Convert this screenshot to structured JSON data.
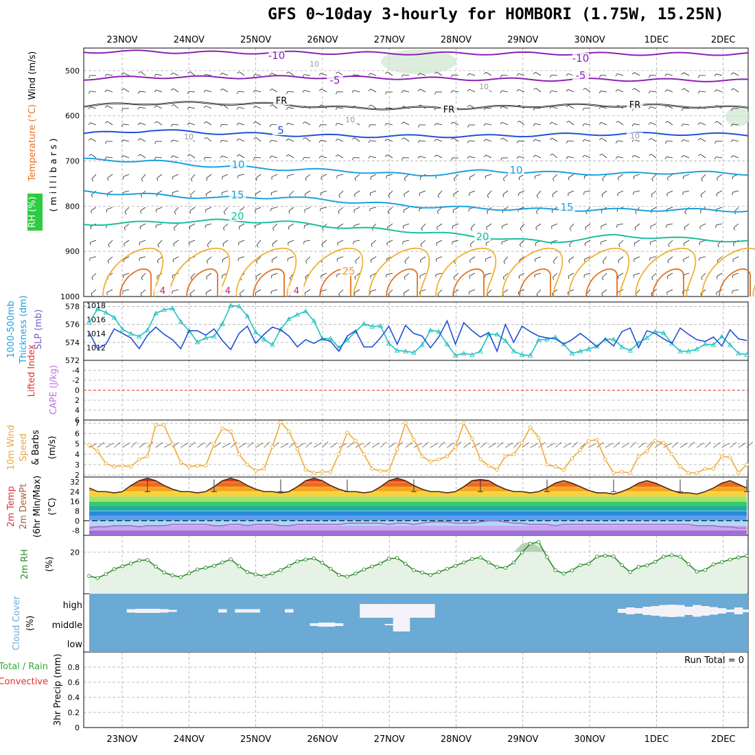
{
  "title": "GFS 0~10day 3-hourly for HOMBORI (1.75W, 15.25N)",
  "dates": [
    "23NOV",
    "24NOV",
    "25NOV",
    "26NOV",
    "27NOV",
    "28NOV",
    "29NOV",
    "30NOV",
    "1DEC",
    "2DEC"
  ],
  "colors": {
    "purple": "#8c1fb4",
    "black": "#000000",
    "blue": "#1f4fd6",
    "lightblue": "#1aa0e0",
    "teal": "#17bf9b",
    "orange": "#f0a830",
    "darkorange": "#e07020",
    "red": "#e03030",
    "rhgreen": "#2a8a2a",
    "cloud": "#6aaad4",
    "precipgreen": "#33aa33"
  },
  "chart_data": [
    {
      "panel": "upper-air",
      "type": "contour",
      "ylabel_parts": [
        "RH (%)",
        "Temperature (°C)",
        "Wind (m/s)"
      ],
      "yunit_label": "( m i l l i b a r s )",
      "ytick_labels": [
        "500",
        "600",
        "700",
        "800",
        "900",
        "1000"
      ],
      "ylim": [
        1000,
        450
      ],
      "isotherms": [
        {
          "label": "-10",
          "color": "#8c1fb4",
          "values": [
            458,
            458,
            460,
            460,
            461,
            462,
            462,
            462,
            463,
            463,
            463
          ]
        },
        {
          "label": "-5",
          "color": "#8c1fb4",
          "values": [
            518,
            514,
            515,
            514,
            515,
            517,
            519,
            520,
            520,
            521,
            522
          ]
        },
        {
          "label": "FR",
          "color": "#000000",
          "values": [
            578,
            572,
            572,
            575,
            583,
            583,
            582,
            577,
            577,
            578,
            583
          ]
        },
        {
          "label": "5",
          "color": "#1f4fd6",
          "values": [
            640,
            632,
            638,
            642,
            645,
            645,
            645,
            642,
            640,
            640,
            642
          ]
        },
        {
          "label": "10",
          "color": "#1aa0e0",
          "values": [
            697,
            700,
            712,
            718,
            722,
            732,
            722,
            726,
            729,
            725,
            728
          ]
        },
        {
          "label": "15",
          "color": "#1aa0e0",
          "values": [
            768,
            775,
            782,
            780,
            790,
            800,
            805,
            808,
            808,
            808,
            810
          ]
        },
        {
          "label": "20",
          "color": "#17bf9b",
          "values": [
            840,
            836,
            832,
            835,
            848,
            856,
            868,
            880,
            865,
            872,
            878
          ]
        }
      ],
      "inline_labels": [
        "-10",
        "-10",
        "-5",
        "-5",
        "FR",
        "FR",
        "FR",
        "5",
        "10",
        "10",
        "15",
        "15",
        "20",
        "20",
        "10",
        "10",
        "10",
        "10",
        "10",
        "4",
        "4",
        "4",
        "25"
      ]
    },
    {
      "panel": "slp-thickness",
      "type": "line",
      "ylabel_parts": [
        "1000-500mb",
        "Thickness (dm)",
        "SLP (mb)"
      ],
      "ytick_labels_left": [
        "572",
        "574",
        "576",
        "578"
      ],
      "ytick_labels_right": [
        "1012",
        "1014",
        "1016",
        "1018"
      ],
      "ylim_left": [
        572,
        578.5
      ],
      "ylim_right": [
        1010.2,
        1018.5
      ],
      "series": [
        {
          "color": "#1f4fd6",
          "axis": "left",
          "values": [
            575.1,
            573.3,
            573.8,
            575.5,
            575.0,
            574.5,
            573.3,
            574.8,
            575.7,
            574.9,
            574.3,
            573.3,
            575.3,
            575.3,
            574.8,
            575.5,
            574.2,
            573.2,
            575.0,
            575.8,
            573.9,
            574.9,
            575.7,
            575.4,
            574.7,
            573.5,
            574.3,
            573.9,
            574.4,
            574.1,
            573.0,
            574.7,
            575.3,
            573.5,
            573.5,
            574.5,
            575.8,
            573.8,
            575.9,
            575.0,
            574.7,
            573.4,
            574.6,
            576.4,
            573.8,
            576.2,
            575.3,
            574.6,
            575.1,
            573.0,
            576.0,
            574.0,
            575.8,
            575.2,
            574.7,
            574.5,
            574.4,
            573.8,
            574.3,
            575.0,
            574.3,
            573.5,
            574.4,
            573.6,
            575.2,
            575.6,
            573.4,
            575.3,
            575.0,
            574.4,
            573.9,
            575.6,
            574.9,
            574.3,
            574.1,
            574.6,
            573.6,
            575.4,
            574.4,
            574.2
          ]
        },
        {
          "color": "#20c0c0",
          "axis": "right",
          "values": [
            1015.6,
            1017.5,
            1017.0,
            1016.3,
            1014.6,
            1014.0,
            1013.6,
            1014.5,
            1016.9,
            1017.4,
            1017.6,
            1015.7,
            1014.4,
            1012.8,
            1013.4,
            1013.6,
            1015.4,
            1018.0,
            1017.9,
            1016.5,
            1014.2,
            1013.2,
            1012.4,
            1014.6,
            1016.1,
            1016.7,
            1017.2,
            1015.8,
            1013.3,
            1013.3,
            1012.0,
            1013.1,
            1014.3,
            1015.4,
            1015.0,
            1015.1,
            1012.6,
            1011.6,
            1011.5,
            1011.3,
            1012.4,
            1014.5,
            1014.3,
            1012.5,
            1010.9,
            1011.2,
            1011.0,
            1011.5,
            1013.9,
            1013.9,
            1013.0,
            1011.5,
            1011.0,
            1010.9,
            1013.1,
            1013.2,
            1013.5,
            1012.5,
            1011.2,
            1011.5,
            1011.8,
            1012.2,
            1013.2,
            1013.2,
            1012.1,
            1011.6,
            1012.7,
            1013.4,
            1014.3,
            1014.1,
            1012.6,
            1011.5,
            1011.5,
            1011.8,
            1012.5,
            1012.4,
            1013.6,
            1012.4,
            1011.2,
            1011.0
          ]
        }
      ]
    },
    {
      "panel": "instability",
      "type": "line",
      "ylabel_parts": [
        "Lifted Index",
        "CAPE (J/kg)"
      ],
      "ytick_labels": [
        "-4",
        "-2",
        "0",
        "2",
        "4",
        "6"
      ],
      "ylim": [
        -6,
        6
      ],
      "reference_line": 0
    },
    {
      "panel": "wind10m",
      "type": "line",
      "ylabel_parts": [
        "10m Wind",
        "Speed",
        "& Barbs",
        "(m/s)"
      ],
      "ytick_labels": [
        "2",
        "3",
        "4",
        "5",
        "6",
        "7"
      ],
      "ylim": [
        1.8,
        7.3
      ],
      "series": [
        {
          "color": "#f0a830",
          "values": [
            4.9,
            4.3,
            3.1,
            2.8,
            2.9,
            2.8,
            3.5,
            3.8,
            6.8,
            6.8,
            5.0,
            3.2,
            2.8,
            2.9,
            2.9,
            5.0,
            6.5,
            6.2,
            4.0,
            3.0,
            2.4,
            2.6,
            4.7,
            7.1,
            6.2,
            4.5,
            2.5,
            2.2,
            2.3,
            2.3,
            4.0,
            6.1,
            5.3,
            4.0,
            2.6,
            2.4,
            2.4,
            4.5,
            7.0,
            5.4,
            3.8,
            3.3,
            3.5,
            3.8,
            4.7,
            7.0,
            5.5,
            3.5,
            2.9,
            2.5,
            3.8,
            4.0,
            5.1,
            6.6,
            5.6,
            3.0,
            2.8,
            2.5,
            3.6,
            4.4,
            5.3,
            5.4,
            3.5,
            2.2,
            2.3,
            2.2,
            3.8,
            4.3,
            5.3,
            5.1,
            4.0,
            2.8,
            2.2,
            2.2,
            2.6,
            2.6,
            3.8,
            3.7,
            2.2,
            3.0
          ]
        }
      ]
    },
    {
      "panel": "temperature",
      "type": "area",
      "ylabel_parts": [
        "2m Temp",
        "2m DewPt",
        "(6hr Min/Max)",
        "(°C)"
      ],
      "ytick_labels": [
        "-8",
        "0",
        "8",
        "16",
        "24",
        "32"
      ],
      "ylim": [
        -12,
        36
      ],
      "series": [
        {
          "name": "",
          "color": "#4a2a1a",
          "values": [
            27,
            24,
            24,
            23,
            24,
            29,
            33,
            35,
            33,
            29,
            26,
            24,
            24,
            23,
            24,
            28,
            33,
            35,
            33,
            29,
            26,
            24,
            24,
            23,
            24,
            28,
            33,
            35,
            33,
            29,
            26,
            24,
            24,
            23,
            24,
            28,
            33,
            35,
            33,
            29,
            26,
            24,
            24,
            23,
            24,
            28,
            33,
            34,
            33,
            29,
            26,
            24,
            24,
            23,
            24,
            27,
            31,
            33,
            31,
            28,
            25,
            23,
            23,
            22,
            24,
            27,
            31,
            33,
            31,
            28,
            25,
            23,
            23,
            22,
            24,
            27,
            31,
            33,
            30,
            27
          ]
        },
        {
          "name": "",
          "color": "#a070c0",
          "values": [
            -6,
            -5,
            -5,
            -4,
            -4,
            -4,
            -5,
            -4,
            -4,
            -4,
            -3,
            -3,
            -3,
            -3,
            -3,
            -4,
            -4,
            -3,
            -3,
            -4,
            -3,
            -3,
            -3,
            -4,
            -4,
            -3,
            -3,
            -3,
            -3,
            -3,
            -3,
            -2,
            -2,
            -2,
            -2,
            -2,
            -3,
            -2,
            -2,
            -3,
            -2,
            -1,
            -1,
            -1,
            -2,
            -2,
            -2,
            -1,
            0,
            0,
            -1,
            -2,
            -2,
            -3,
            -3,
            -3,
            -4,
            -3,
            -3,
            -3,
            -3,
            -3,
            -3,
            -3,
            -3,
            -3,
            -3,
            -3,
            -3,
            -3,
            -3,
            -3,
            -3,
            -4,
            -4,
            -4,
            -5,
            -5,
            -6,
            -6
          ]
        }
      ]
    },
    {
      "panel": "rh2m",
      "type": "area",
      "ylabel_parts": [
        "2m RH",
        "(%)"
      ],
      "ytick_labels": [
        "20"
      ],
      "ylim": [
        0,
        28
      ],
      "series": [
        {
          "color": "#2a8a2a",
          "values": [
            8.5,
            7.5,
            9.4,
            11.8,
            13.2,
            14.5,
            16.0,
            16.2,
            13.0,
            10.2,
            8.8,
            8.0,
            9.8,
            11.6,
            12.5,
            13.4,
            15.0,
            16.5,
            13.2,
            10.4,
            9.3,
            8.5,
            9.8,
            11.3,
            13.4,
            15.5,
            16.4,
            17.0,
            14.8,
            12.0,
            9.0,
            8.2,
            9.7,
            11.6,
            13.1,
            14.5,
            16.8,
            17.2,
            14.4,
            11.3,
            10.2,
            9.0,
            10.4,
            11.9,
            13.4,
            15.0,
            16.7,
            17.4,
            15.0,
            12.8,
            12.4,
            15.0,
            19.8,
            24.0,
            24.8,
            17.6,
            11.3,
            9.7,
            11.2,
            13.7,
            14.4,
            17.8,
            18.3,
            17.9,
            13.7,
            10.4,
            12.9,
            13.6,
            15.3,
            17.8,
            18.5,
            17.8,
            14.2,
            10.6,
            11.4,
            14.1,
            15.2,
            16.4,
            17.4,
            18.2
          ]
        }
      ]
    },
    {
      "panel": "cloud",
      "type": "heatmap",
      "ylabel_parts": [
        "Cloud Cover",
        "(%)"
      ],
      "levels": [
        "high",
        "middle",
        "low"
      ],
      "high": [
        0,
        0,
        0,
        0,
        0,
        0.25,
        0.3,
        0.3,
        0.3,
        0.25,
        0.15,
        0,
        0,
        0,
        0,
        0,
        0.25,
        0,
        0.25,
        0.25,
        0.25,
        0,
        0,
        0,
        0.25,
        0,
        0,
        0,
        0,
        0,
        0,
        0,
        0,
        1,
        1,
        1,
        1,
        1,
        1,
        1,
        1,
        1,
        0,
        0,
        0,
        0,
        0,
        0,
        0,
        0,
        0,
        0,
        0,
        0,
        0,
        0,
        0,
        0,
        0,
        0,
        0,
        0,
        0,
        0,
        0.3,
        0.5,
        0.4,
        0.6,
        0.7,
        0.85,
        0.9,
        0.85,
        0.6,
        0.85,
        0.7,
        0.55,
        0.4,
        0.2,
        0.5,
        0.2
      ],
      "middle": [
        0,
        0,
        0,
        0,
        0,
        0,
        0,
        0,
        0,
        0,
        0,
        0,
        0,
        0,
        0,
        0,
        0,
        0,
        0,
        0,
        0,
        0,
        0,
        0,
        0,
        0,
        0,
        0.2,
        0.3,
        0.3,
        0.2,
        0,
        0,
        0,
        0,
        0,
        0.1,
        1,
        1,
        0,
        0,
        0,
        0,
        0,
        0,
        0,
        0,
        0,
        0,
        0,
        0,
        0,
        0,
        0,
        0,
        0,
        0,
        0,
        0,
        0,
        0,
        0,
        0,
        0,
        0,
        0,
        0,
        0,
        0,
        0,
        0,
        0,
        0,
        0,
        0,
        0,
        0,
        0,
        0,
        0
      ],
      "low": [
        0,
        0,
        0,
        0,
        0,
        0,
        0,
        0,
        0,
        0,
        0,
        0,
        0,
        0,
        0,
        0,
        0,
        0,
        0,
        0,
        0,
        0,
        0,
        0,
        0,
        0,
        0,
        0,
        0,
        0,
        0,
        0,
        0,
        0,
        0,
        0,
        0,
        0,
        0,
        0,
        0,
        0,
        0,
        0,
        0,
        0,
        0,
        0,
        0,
        0,
        0,
        0,
        0,
        0,
        0,
        0,
        0,
        0,
        0,
        0,
        0,
        0,
        0,
        0,
        0,
        0,
        0,
        0,
        0,
        0,
        0,
        0,
        0,
        0,
        0,
        0,
        0,
        0,
        0,
        0
      ]
    },
    {
      "panel": "precip",
      "type": "bar",
      "ylabel_parts": [
        "Total / Rain",
        "Convective",
        "3hr Precip (mm)"
      ],
      "ytick_labels": [
        "0",
        "0.2",
        "0.4",
        "0.6",
        "0.8"
      ],
      "ylim": [
        0,
        1.0
      ],
      "annotation": "Run Total = 0",
      "values": []
    }
  ]
}
